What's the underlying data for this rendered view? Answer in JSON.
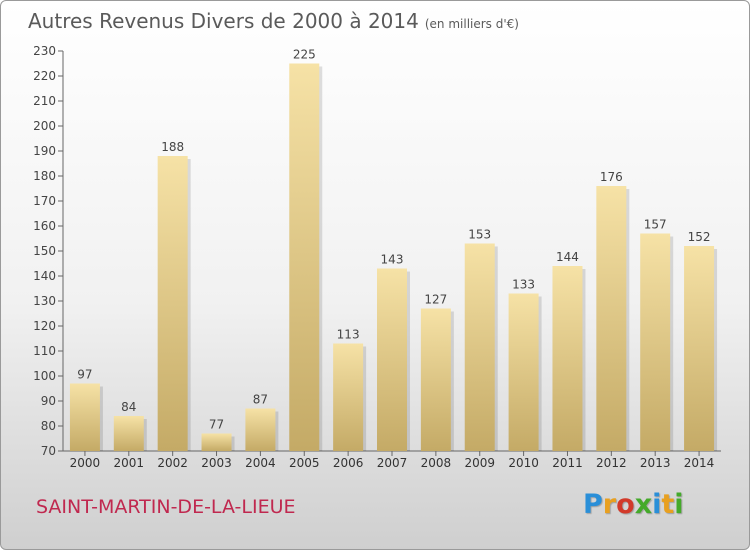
{
  "page": {
    "title": "Autres Revenus Divers de 2000 à 2014",
    "unit": "(en milliers d'€)",
    "commune": "SAINT-MARTIN-DE-LA-LIEUE",
    "logo": {
      "letters": [
        "P",
        "r",
        "o",
        "x",
        "i",
        "t",
        "i"
      ],
      "colors": [
        "#2a8fd8",
        "#e8a020",
        "#d23a2a",
        "#44aa2a",
        "#2a8fd8",
        "#e8a020",
        "#44aa2a"
      ]
    }
  },
  "chart_data": {
    "type": "bar",
    "title": "Autres Revenus Divers de 2000 à 2014",
    "subtitle": "(en milliers d'€)",
    "categories": [
      "2000",
      "2001",
      "2002",
      "2003",
      "2004",
      "2005",
      "2006",
      "2007",
      "2008",
      "2009",
      "2010",
      "2011",
      "2012",
      "2013",
      "2014"
    ],
    "values": [
      97,
      84,
      188,
      77,
      87,
      225,
      113,
      143,
      127,
      153,
      133,
      144,
      176,
      157,
      152
    ],
    "ylim": [
      70,
      230
    ],
    "yticks": [
      70,
      80,
      90,
      100,
      110,
      120,
      130,
      140,
      150,
      160,
      170,
      180,
      190,
      200,
      210,
      220,
      230
    ],
    "grid": false,
    "bar_color_top": "#f6e2a6",
    "bar_color_bottom": "#c4aa66"
  }
}
